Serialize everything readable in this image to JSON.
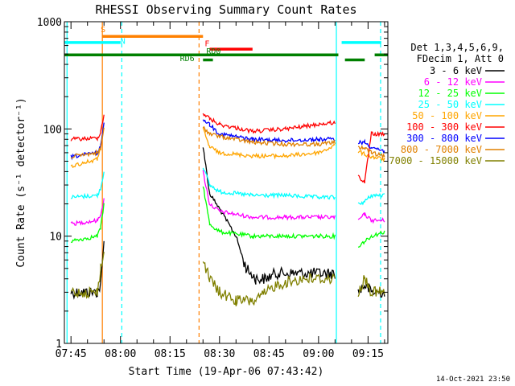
{
  "chart_data": {
    "type": "line",
    "title": "RHESSI Observing Summary Count Rates",
    "ylabel": "Count Rate (s⁻¹ detector⁻¹)",
    "xlabel": "Start Time (19-Apr-06 07:43:42)",
    "y_scale": "log",
    "ylim": [
      1,
      1000
    ],
    "xlim_minutes": [
      -2,
      96
    ],
    "y_ticks": [
      {
        "value": 1,
        "label": "1"
      },
      {
        "value": 10,
        "label": "10"
      },
      {
        "value": 100,
        "label": "100"
      },
      {
        "value": 1000,
        "label": "1000"
      }
    ],
    "x_ticks": [
      {
        "minute": 0,
        "label": "07:45"
      },
      {
        "minute": 15,
        "label": "08:00"
      },
      {
        "minute": 30,
        "label": "08:15"
      },
      {
        "minute": 45,
        "label": "08:30"
      },
      {
        "minute": 60,
        "label": "08:45"
      },
      {
        "minute": 75,
        "label": "09:00"
      },
      {
        "minute": 90,
        "label": "09:15"
      }
    ],
    "legend_header": [
      "Det 1,3,4,5,6,9,",
      "FDecim 1, Att 0"
    ],
    "series": [
      {
        "name": "3 - 6 keV",
        "color": "#000000",
        "x": [
          0,
          8,
          9,
          10,
          38,
          40,
          42,
          45,
          50,
          53,
          56,
          59,
          62,
          80,
          82,
          87,
          89,
          91,
          95
        ],
        "y": [
          3,
          3,
          3.5,
          9,
          null,
          70,
          25,
          18,
          10,
          5,
          4,
          4,
          4.5,
          4.5,
          null,
          3,
          3.5,
          3,
          3
        ]
      },
      {
        "name": "6 - 12 keV",
        "color": "#ff00ff",
        "x": [
          0,
          8,
          9,
          10,
          38,
          40,
          42,
          45,
          55,
          65,
          75,
          80,
          82,
          87,
          89,
          91,
          95
        ],
        "y": [
          13,
          14,
          16,
          22,
          null,
          40,
          20,
          17,
          15,
          15,
          15,
          15,
          null,
          14,
          16,
          14,
          14
        ]
      },
      {
        "name": "12 - 25 keV",
        "color": "#00ff00",
        "x": [
          0,
          8,
          9,
          10,
          38,
          40,
          42,
          45,
          55,
          65,
          75,
          80,
          82,
          87,
          89,
          91,
          95
        ],
        "y": [
          9,
          10,
          12,
          20,
          null,
          30,
          13,
          11,
          10,
          10,
          10,
          10,
          null,
          8,
          9,
          10,
          11
        ]
      },
      {
        "name": "25 - 50 keV",
        "color": "#00ffff",
        "x": [
          0,
          8,
          9,
          10,
          38,
          40,
          42,
          45,
          55,
          65,
          75,
          80,
          82,
          87,
          89,
          91,
          95
        ],
        "y": [
          23,
          24,
          28,
          40,
          null,
          45,
          30,
          26,
          24,
          24,
          23,
          23,
          null,
          20,
          21,
          24,
          24
        ]
      },
      {
        "name": "50 - 100 keV",
        "color": "#ffa500",
        "x": [
          0,
          8,
          9,
          10,
          38,
          40,
          42,
          45,
          55,
          65,
          75,
          80,
          82,
          87,
          89,
          91,
          95
        ],
        "y": [
          45,
          52,
          70,
          110,
          null,
          100,
          68,
          60,
          56,
          56,
          60,
          70,
          null,
          62,
          58,
          55,
          52
        ]
      },
      {
        "name": "100 - 300 keV",
        "color": "#ff0000",
        "x": [
          0,
          8,
          9,
          10,
          38,
          40,
          42,
          45,
          55,
          65,
          75,
          80,
          82,
          87,
          89,
          91,
          95
        ],
        "y": [
          80,
          82,
          95,
          135,
          null,
          140,
          125,
          110,
          95,
          100,
          110,
          115,
          null,
          36,
          32,
          90,
          88
        ]
      },
      {
        "name": "300 - 800 keV",
        "color": "#0000ff",
        "x": [
          0,
          8,
          9,
          10,
          38,
          40,
          42,
          45,
          55,
          65,
          75,
          80,
          82,
          87,
          89,
          91,
          95
        ],
        "y": [
          55,
          60,
          70,
          110,
          null,
          125,
          110,
          90,
          80,
          78,
          80,
          80,
          null,
          75,
          75,
          68,
          62
        ]
      },
      {
        "name": "800 - 7000 keV",
        "color": "#e08000",
        "x": [
          0,
          8,
          9,
          10,
          38,
          40,
          42,
          45,
          55,
          65,
          75,
          80,
          82,
          87,
          89,
          91,
          95
        ],
        "y": [
          55,
          60,
          65,
          100,
          null,
          105,
          90,
          85,
          75,
          72,
          72,
          75,
          null,
          68,
          66,
          60,
          55
        ]
      },
      {
        "name": "7000 - 15000 keV",
        "color": "#808000",
        "x": [
          0,
          8,
          9,
          10,
          38,
          40,
          42,
          45,
          50,
          56,
          62,
          70,
          80,
          82,
          87,
          89,
          91,
          95
        ],
        "y": [
          3,
          3,
          5,
          7,
          null,
          6,
          4,
          3,
          2.5,
          2.5,
          3.5,
          4,
          4,
          null,
          3,
          4,
          3,
          3
        ]
      }
    ],
    "event_bars": [
      {
        "label": "S",
        "color": "#ff8000",
        "y": 730,
        "x_start": 9.5,
        "x_end": 40
      },
      {
        "label": "N",
        "color": "#00ffff",
        "y": 640,
        "x_start": -2,
        "x_end": 15
      },
      {
        "label": "N",
        "color": "#00ffff",
        "y": 640,
        "x_start": 82,
        "x_end": 94
      },
      {
        "label": "F",
        "color": "#ff0000",
        "y": 555,
        "x_start": 42,
        "x_end": 55
      },
      {
        "label": "RD0",
        "color": "#008000",
        "y": 490,
        "x_start": -2,
        "x_end": 81
      },
      {
        "label": "RD6",
        "color": "#008000",
        "y": 440,
        "x_start": 40,
        "x_end": 43
      },
      {
        "label": "",
        "color": "#008000",
        "y": 440,
        "x_start": 83,
        "x_end": 89
      },
      {
        "label": "",
        "color": "#008000",
        "y": 490,
        "x_start": 92,
        "x_end": 96
      }
    ],
    "event_labels": [
      {
        "text": "S",
        "color": "#ff8000",
        "minute": 9,
        "y": 800
      },
      {
        "text": "N",
        "color": "#00ffff",
        "minute": 15,
        "y": 620
      },
      {
        "text": "F",
        "color": "#ff0000",
        "minute": 40.5,
        "y": 590
      },
      {
        "text": "RD0",
        "color": "#008000",
        "minute": 41,
        "y": 500
      },
      {
        "text": "RD6",
        "color": "#008000",
        "minute": 33,
        "y": 430
      }
    ],
    "vertical_lines": [
      {
        "minute": -1.2,
        "color": "#00ffff",
        "style": "solid"
      },
      {
        "minute": 9.5,
        "color": "#ff8000",
        "style": "solid"
      },
      {
        "minute": 15.4,
        "color": "#00ffff",
        "style": "dashed"
      },
      {
        "minute": 38.8,
        "color": "#ff8000",
        "style": "dashed"
      },
      {
        "minute": 80.4,
        "color": "#00ffff",
        "style": "solid"
      },
      {
        "minute": 93.8,
        "color": "#00ffff",
        "style": "dashed"
      }
    ]
  },
  "footer": {
    "timestamp": "14-Oct-2021 23:50"
  }
}
